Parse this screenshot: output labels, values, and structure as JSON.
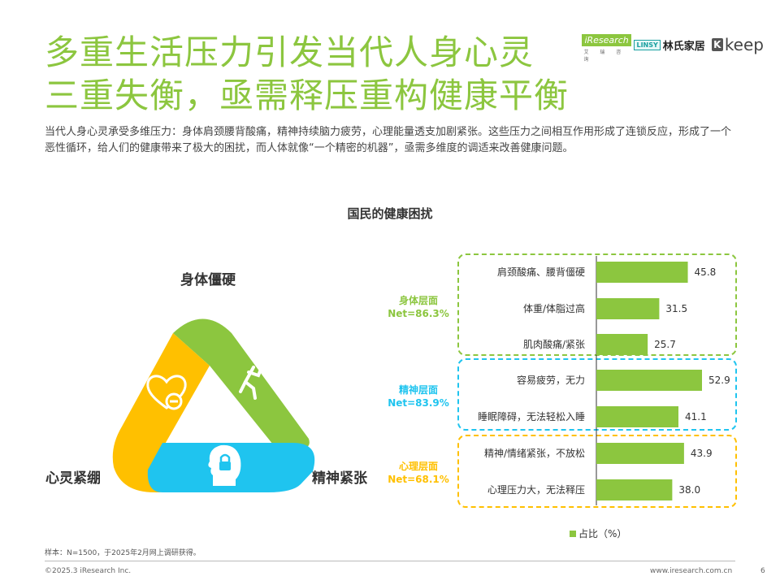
{
  "header": {
    "title_line1": "多重生活压力引发当代人身心灵",
    "title_line2": "三重失衡，亟需释压重构健康平衡",
    "logo_iresearch": "iResearch",
    "logo_iresearch_sub": "艾 瑞 咨 询",
    "logo_linsy_tag": "LINSY",
    "logo_linsy_cn": "林氏家居",
    "logo_keep": "keep"
  },
  "description": "当代人身心灵承受多维压力：身体肩颈腰背酸痛，精神持续脑力疲劳，心理能量透支加剧紧张。这些压力之间相互作用形成了连锁反应，形成了一个恶性循环，给人们的健康带来了极大的困扰，而人体就像“一个精密的机器”，亟需多维度的调适来改善健康问题。",
  "triangle": {
    "top_label": "身体僵硬",
    "left_label": "心灵紧绷",
    "right_label": "精神紧张",
    "segments": [
      {
        "name": "body",
        "color": "#8cc63f",
        "icon": "running-person-icon"
      },
      {
        "name": "mind",
        "color": "#ffc000",
        "icon": "heart-minus-icon"
      },
      {
        "name": "spirit",
        "color": "#1fc4ef",
        "icon": "head-lock-icon"
      }
    ]
  },
  "groups": [
    {
      "name": "身体层面",
      "net": "Net=86.3%",
      "color": "#8cc63f"
    },
    {
      "name": "精神层面",
      "net": "Net=83.9%",
      "color": "#1fc4ef"
    },
    {
      "name": "心理层面",
      "net": "Net=68.1%",
      "color": "#ffc000"
    }
  ],
  "chart_data": {
    "type": "bar",
    "orientation": "horizontal",
    "title": "国民的健康困扰",
    "categories": [
      "肩颈酸痛、腰背僵硬",
      "体重/体脂过高",
      "肌肉酸痛/紧张",
      "容易疲劳，无力",
      "睡眠障碍，无法轻松入睡",
      "精神/情绪紧张，不放松",
      "心理压力大，无法释压"
    ],
    "values": [
      45.8,
      31.5,
      25.7,
      52.9,
      41.1,
      43.9,
      38.0
    ],
    "value_labels": [
      "45.8",
      "31.5",
      "25.7",
      "52.9",
      "41.1",
      "43.9",
      "38.0"
    ],
    "group_of_category": [
      0,
      0,
      0,
      1,
      1,
      2,
      2
    ],
    "series": [
      {
        "name": "占比（%）",
        "values": [
          45.8,
          31.5,
          25.7,
          52.9,
          41.1,
          43.9,
          38.0
        ]
      }
    ],
    "bar_color": "#8cc63f",
    "xlim": [
      0,
      60
    ],
    "legend_position": "bottom"
  },
  "legend_label": "占比（%）",
  "footnote": "样本：N=1500，于2025年2月网上调研获得。",
  "footer": {
    "copyright": "©2025.3 iResearch Inc.",
    "url": "www.iresearch.com.cn",
    "page": "6"
  }
}
